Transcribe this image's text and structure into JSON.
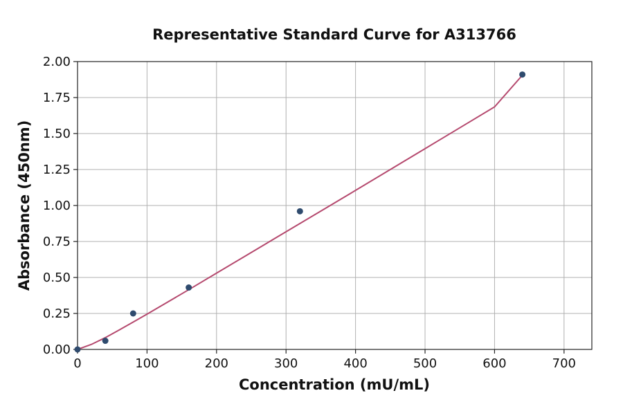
{
  "chart_data": {
    "type": "scatter",
    "title": "Representative Standard Curve for A313766",
    "xlabel": "Concentration (mU/mL)",
    "ylabel": "Absorbance (450nm)",
    "xlim": [
      0,
      740
    ],
    "ylim": [
      0,
      2.0
    ],
    "xticks": [
      0,
      100,
      200,
      300,
      400,
      500,
      600,
      700
    ],
    "yticks": [
      0.0,
      0.25,
      0.5,
      0.75,
      1.0,
      1.25,
      1.5,
      1.75,
      2.0
    ],
    "xtick_labels": [
      "0",
      "100",
      "200",
      "300",
      "400",
      "500",
      "600",
      "700"
    ],
    "ytick_labels": [
      "0.00",
      "0.25",
      "0.50",
      "0.75",
      "1.00",
      "1.25",
      "1.50",
      "1.75",
      "2.00"
    ],
    "grid": true,
    "points": {
      "x": [
        0,
        40,
        80,
        160,
        320,
        640
      ],
      "y": [
        0.0,
        0.06,
        0.25,
        0.43,
        0.96,
        1.91
      ]
    },
    "fit_curve": {
      "x": [
        0,
        20,
        40,
        60,
        80,
        100,
        130,
        160,
        200,
        240,
        280,
        320,
        360,
        400,
        450,
        500,
        550,
        600,
        640
      ],
      "y": [
        0.0,
        0.035,
        0.082,
        0.135,
        0.19,
        0.245,
        0.33,
        0.415,
        0.53,
        0.645,
        0.76,
        0.875,
        0.99,
        1.105,
        1.25,
        1.395,
        1.54,
        1.685,
        1.905
      ]
    },
    "colors": {
      "points": "#2f4b6e",
      "curve": "#b5496e"
    }
  }
}
